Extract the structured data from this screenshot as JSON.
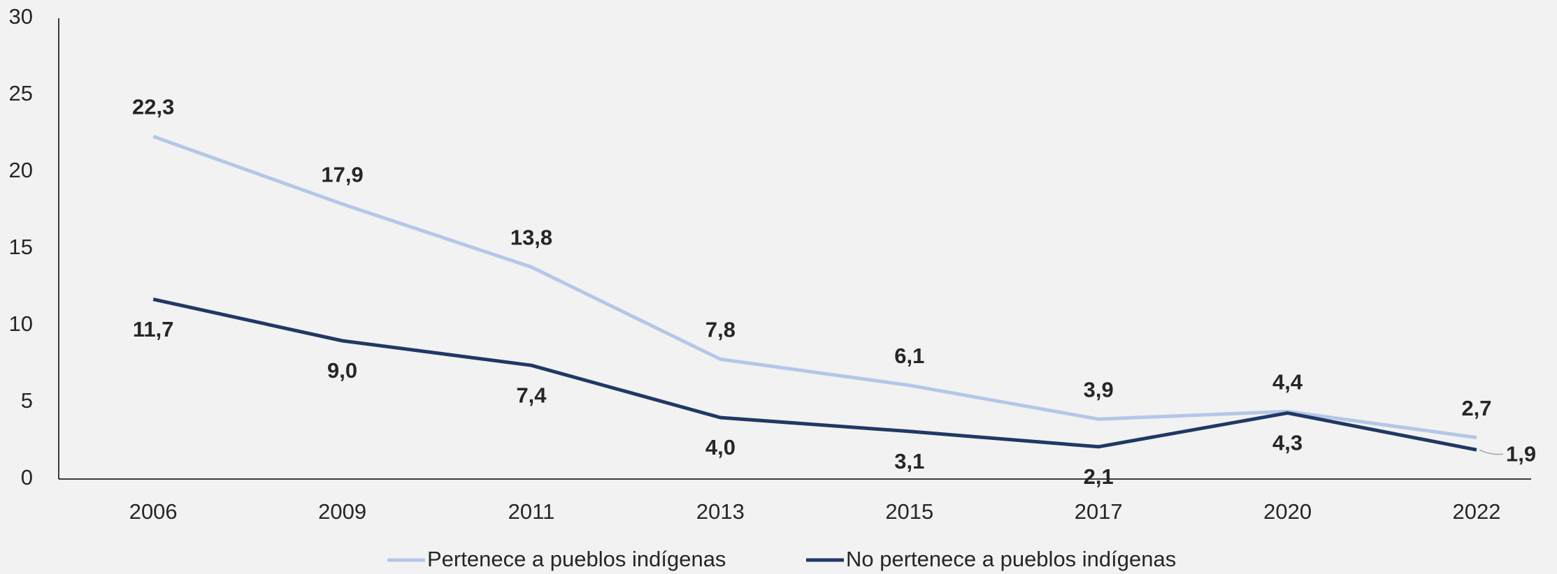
{
  "chart_data": {
    "type": "line",
    "categories": [
      "2006",
      "2009",
      "2011",
      "2013",
      "2015",
      "2017",
      "2020",
      "2022"
    ],
    "series": [
      {
        "name": "Pertenece a pueblos indígenas",
        "color": "#b4c7e7",
        "values": [
          22.3,
          17.9,
          13.8,
          7.8,
          6.1,
          3.9,
          4.4,
          2.7
        ],
        "value_labels": [
          "22,3",
          "17,9",
          "13,8",
          "7,8",
          "6,1",
          "3,9",
          "4,4",
          "2,7"
        ]
      },
      {
        "name": "No pertenece a pueblos indígenas",
        "color": "#203864",
        "values": [
          11.7,
          9.0,
          7.4,
          4.0,
          3.1,
          2.1,
          4.3,
          1.9
        ],
        "value_labels": [
          "11,7",
          "9,0",
          "7,4",
          "4,0",
          "3,1",
          "2,1",
          "4,3",
          "1,9"
        ]
      }
    ],
    "ylim": [
      0,
      30
    ],
    "yticks": [
      0,
      5,
      10,
      15,
      20,
      25,
      30
    ],
    "grid": false,
    "legend": "bottom"
  }
}
